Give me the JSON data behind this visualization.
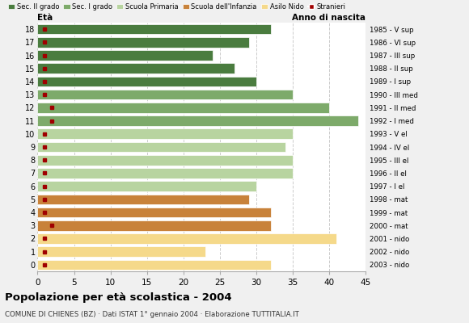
{
  "ages": [
    18,
    17,
    16,
    15,
    14,
    13,
    12,
    11,
    10,
    9,
    8,
    7,
    6,
    5,
    4,
    3,
    2,
    1,
    0
  ],
  "anno_nascita": [
    "1985 - V sup",
    "1986 - VI sup",
    "1987 - III sup",
    "1988 - II sup",
    "1989 - I sup",
    "1990 - III med",
    "1991 - II med",
    "1992 - I med",
    "1993 - V el",
    "1994 - IV el",
    "1995 - III el",
    "1996 - II el",
    "1997 - I el",
    "1998 - mat",
    "1999 - mat",
    "2000 - mat",
    "2001 - nido",
    "2002 - nido",
    "2003 - nido"
  ],
  "bar_values": [
    32,
    29,
    24,
    27,
    30,
    35,
    40,
    44,
    35,
    34,
    35,
    35,
    30,
    29,
    32,
    32,
    41,
    23,
    32
  ],
  "bar_colors": [
    "#4a7c3f",
    "#4a7c3f",
    "#4a7c3f",
    "#4a7c3f",
    "#4a7c3f",
    "#7daa6a",
    "#7daa6a",
    "#7daa6a",
    "#b8d4a0",
    "#b8d4a0",
    "#b8d4a0",
    "#b8d4a0",
    "#b8d4a0",
    "#c8823a",
    "#c8823a",
    "#c8823a",
    "#f5d98a",
    "#f5d98a",
    "#f5d98a"
  ],
  "stranieri_values": [
    1,
    1,
    1,
    1,
    1,
    1,
    2,
    2,
    1,
    1,
    1,
    1,
    1,
    1,
    1,
    2,
    1,
    1,
    1
  ],
  "stranieri_color": "#a00000",
  "legend_labels": [
    "Sec. II grado",
    "Sec. I grado",
    "Scuola Primaria",
    "Scuola dell'Infanzia",
    "Asilo Nido",
    "Stranieri"
  ],
  "legend_colors": [
    "#4a7c3f",
    "#7daa6a",
    "#b8d4a0",
    "#c8823a",
    "#f5d98a",
    "#a00000"
  ],
  "title": "Popolazione per età scolastica - 2004",
  "subtitle": "COMUNE DI CHIENES (BZ) · Dati ISTAT 1° gennaio 2004 · Elaborazione TUTTITALIA.IT",
  "xlabel_left": "Età",
  "xlabel_right": "Anno di nascita",
  "xlim": [
    0,
    45
  ],
  "xticks": [
    0,
    5,
    10,
    15,
    20,
    25,
    30,
    35,
    40,
    45
  ],
  "bg_color": "#f0f0f0",
  "plot_bg_color": "#ffffff",
  "grid_color": "#cccccc"
}
